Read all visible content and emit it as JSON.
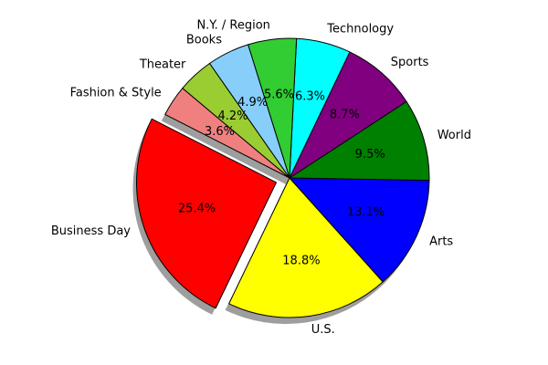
{
  "chart_data": {
    "type": "pie",
    "title": "",
    "start_angle_deg": 140,
    "direction": "counterclockwise",
    "shadow": true,
    "slices": [
      {
        "label": "Fashion & Style",
        "percent": 3.6,
        "color": "#f08080",
        "explode": false
      },
      {
        "label": "Business Day",
        "percent": 25.4,
        "color": "#ff0000",
        "explode": true
      },
      {
        "label": "U.S.",
        "percent": 18.8,
        "color": "#ffff00",
        "explode": false
      },
      {
        "label": "Arts",
        "percent": 13.1,
        "color": "#0000ff",
        "explode": false
      },
      {
        "label": "World",
        "percent": 9.5,
        "color": "#008000",
        "explode": false
      },
      {
        "label": "Sports",
        "percent": 8.7,
        "color": "#800080",
        "explode": false
      },
      {
        "label": "Technology",
        "percent": 6.3,
        "color": "#00ffff",
        "explode": false
      },
      {
        "label": "N.Y. / Region",
        "percent": 5.6,
        "color": "#32cd32",
        "explode": false
      },
      {
        "label": "Books",
        "percent": 4.9,
        "color": "#87cefa",
        "explode": false
      },
      {
        "label": "Theater",
        "percent": 4.2,
        "color": "#9acd32",
        "explode": false
      }
    ]
  }
}
